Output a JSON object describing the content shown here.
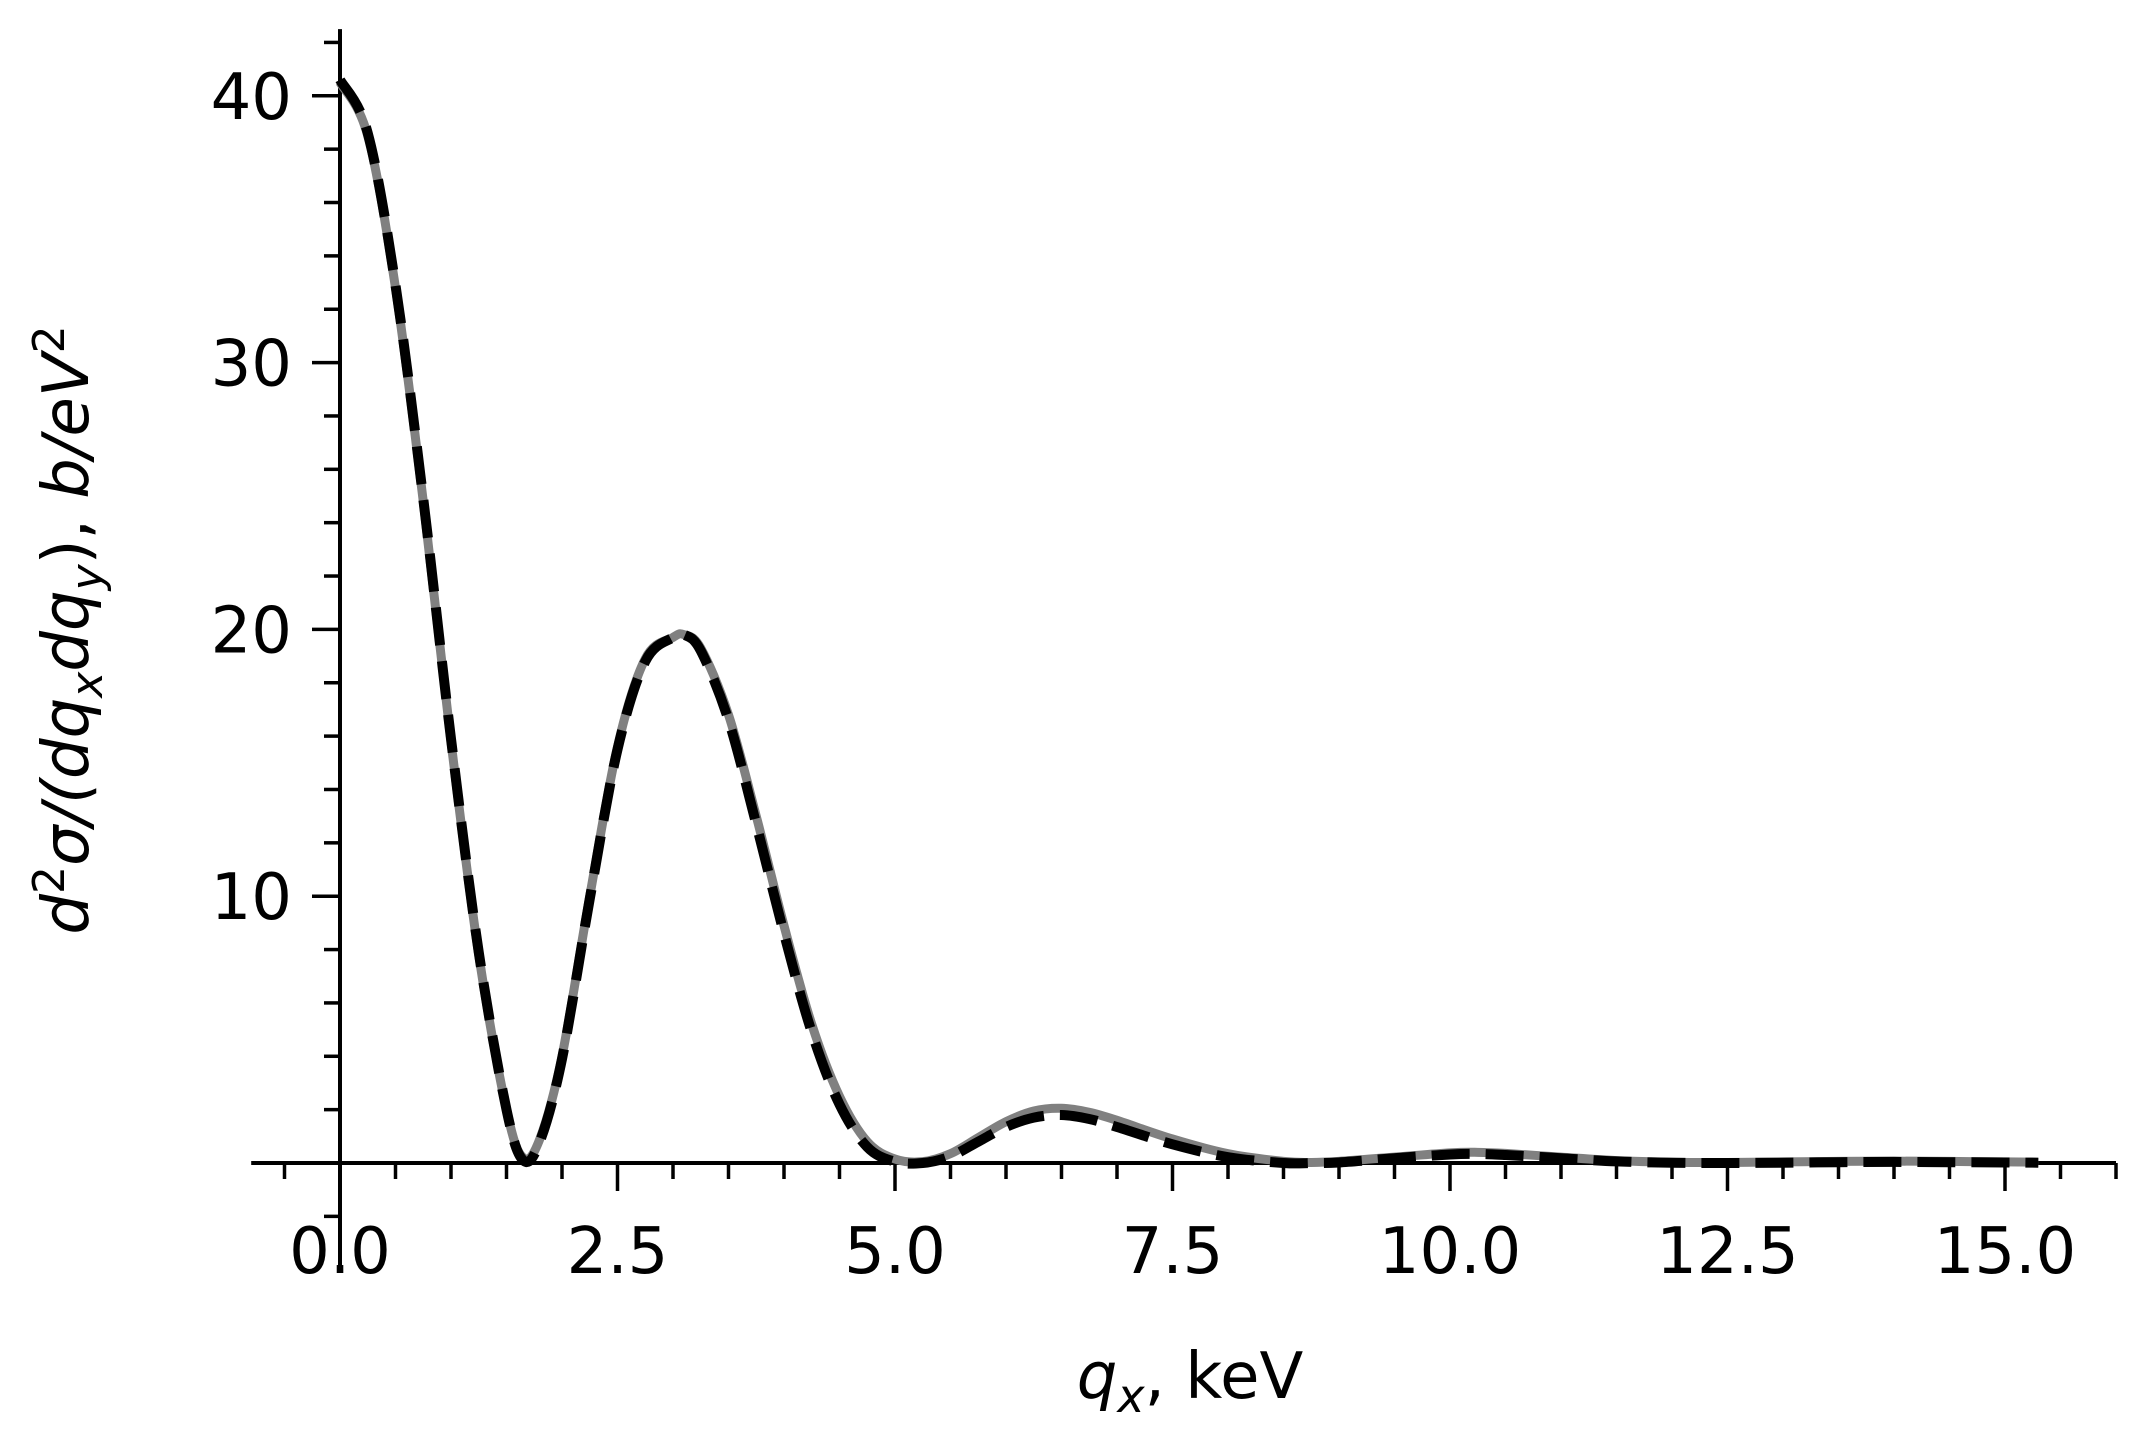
{
  "chart_data": {
    "type": "line",
    "title": "",
    "xlabel": "q_x, keV",
    "ylabel": "d²σ/(dq_x dq_y),  b/eV²",
    "xlim": [
      -0.8,
      16.0
    ],
    "ylim": [
      -2.0,
      42.5
    ],
    "grid": false,
    "legend": null,
    "x_ticks": [
      0.0,
      2.5,
      5.0,
      7.5,
      10.0,
      12.5,
      15.0
    ],
    "x_tick_labels": [
      "0.0",
      "2.5",
      "5.0",
      "7.5",
      "10.0",
      "12.5",
      "15.0"
    ],
    "y_ticks": [
      10,
      20,
      30,
      40
    ],
    "y_tick_labels": [
      "10",
      "20",
      "30",
      "40"
    ],
    "series": [
      {
        "name": "solid (gray)",
        "style": "solid",
        "color": "#808080",
        "x": [
          0.0,
          0.25,
          0.5,
          0.75,
          1.0,
          1.25,
          1.5,
          1.65,
          1.8,
          2.0,
          2.25,
          2.5,
          2.75,
          3.0,
          3.1,
          3.25,
          3.5,
          3.75,
          4.0,
          4.25,
          4.5,
          4.75,
          5.0,
          5.25,
          5.5,
          5.75,
          6.0,
          6.25,
          6.5,
          6.75,
          7.0,
          7.5,
          8.0,
          8.5,
          8.75,
          9.0,
          9.5,
          10.0,
          10.25,
          10.5,
          11.0,
          11.5,
          12.0,
          12.5,
          13.0,
          13.5,
          14.0,
          14.5,
          15.0,
          15.3
        ],
        "y": [
          40.5,
          38.5,
          32.8,
          24.8,
          15.8,
          7.8,
          2.0,
          0.2,
          0.9,
          4.0,
          10.0,
          15.6,
          18.9,
          19.7,
          19.8,
          19.3,
          16.8,
          13.0,
          8.9,
          5.2,
          2.5,
          0.8,
          0.15,
          0.05,
          0.35,
          0.95,
          1.55,
          1.95,
          2.05,
          1.9,
          1.6,
          0.9,
          0.35,
          0.06,
          0.02,
          0.06,
          0.22,
          0.38,
          0.4,
          0.36,
          0.22,
          0.09,
          0.03,
          0.02,
          0.04,
          0.06,
          0.07,
          0.06,
          0.04,
          0.03
        ]
      },
      {
        "name": "dashed (black)",
        "style": "dashed",
        "color": "#000000",
        "x": [
          0.0,
          0.25,
          0.5,
          0.75,
          1.0,
          1.25,
          1.5,
          1.65,
          1.8,
          2.0,
          2.25,
          2.5,
          2.75,
          3.0,
          3.1,
          3.25,
          3.5,
          3.75,
          4.0,
          4.25,
          4.5,
          4.75,
          5.0,
          5.25,
          5.5,
          5.75,
          6.0,
          6.25,
          6.5,
          6.75,
          7.0,
          7.5,
          8.0,
          8.5,
          8.75,
          9.0,
          9.5,
          10.0,
          10.25,
          10.5,
          11.0,
          11.5,
          12.0,
          12.5,
          13.0,
          13.5,
          14.0,
          14.5,
          15.0,
          15.3
        ],
        "y": [
          40.6,
          38.6,
          32.9,
          24.9,
          15.9,
          7.9,
          2.0,
          0.1,
          0.8,
          3.9,
          9.9,
          15.5,
          18.8,
          19.7,
          19.8,
          19.2,
          16.6,
          12.7,
          8.6,
          4.9,
          2.2,
          0.6,
          0.05,
          0.0,
          0.25,
          0.8,
          1.35,
          1.7,
          1.8,
          1.65,
          1.35,
          0.7,
          0.22,
          0.0,
          0.0,
          0.02,
          0.18,
          0.32,
          0.34,
          0.3,
          0.18,
          0.06,
          0.01,
          0.0,
          0.01,
          0.03,
          0.04,
          0.03,
          0.02,
          0.01
        ]
      }
    ]
  }
}
